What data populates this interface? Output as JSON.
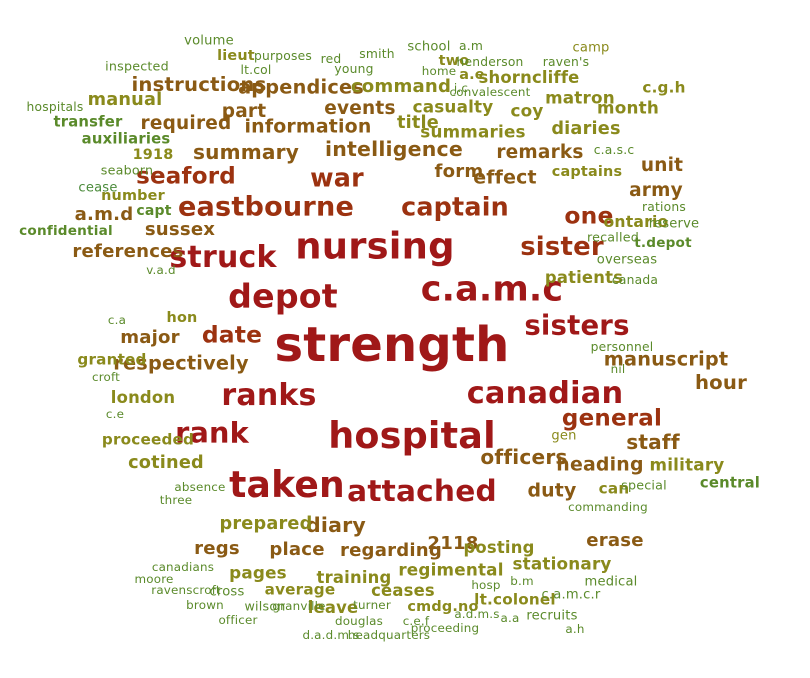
{
  "palette": {
    "dark_red": "#a01818",
    "red_brown": "#9c3210",
    "brown": "#8a5a14",
    "olive": "#8a8a1c",
    "green": "#5a8a2a",
    "light_green": "#4a8a3a"
  },
  "words": [
    {
      "text": "strength",
      "weight": 1.0,
      "color": "dark_red"
    },
    {
      "text": "nursing",
      "weight": 0.73,
      "color": "dark_red"
    },
    {
      "text": "hospital",
      "weight": 0.72,
      "color": "dark_red"
    },
    {
      "text": "taken",
      "weight": 0.71,
      "color": "dark_red"
    },
    {
      "text": "c.a.m.c",
      "weight": 0.68,
      "color": "dark_red"
    },
    {
      "text": "depot",
      "weight": 0.64,
      "color": "dark_red"
    },
    {
      "text": "canadian",
      "weight": 0.57,
      "color": "dark_red"
    },
    {
      "text": "struck",
      "weight": 0.56,
      "color": "dark_red"
    },
    {
      "text": "ranks",
      "weight": 0.56,
      "color": "dark_red"
    },
    {
      "text": "attached",
      "weight": 0.55,
      "color": "dark_red"
    },
    {
      "text": "rank",
      "weight": 0.53,
      "color": "dark_red"
    },
    {
      "text": "sisters",
      "weight": 0.5,
      "color": "dark_red"
    },
    {
      "text": "eastbourne",
      "weight": 0.49,
      "color": "red_brown"
    },
    {
      "text": "sister",
      "weight": 0.46,
      "color": "red_brown"
    },
    {
      "text": "captain",
      "weight": 0.45,
      "color": "red_brown"
    },
    {
      "text": "war",
      "weight": 0.45,
      "color": "red_brown"
    },
    {
      "text": "one",
      "weight": 0.4,
      "color": "red_brown"
    },
    {
      "text": "date",
      "weight": 0.4,
      "color": "red_brown"
    },
    {
      "text": "general",
      "weight": 0.39,
      "color": "red_brown"
    },
    {
      "text": "seaford",
      "weight": 0.39,
      "color": "red_brown"
    },
    {
      "text": "intelligence",
      "weight": 0.33,
      "color": "brown"
    },
    {
      "text": "diary",
      "weight": 0.33,
      "color": "brown"
    },
    {
      "text": "summary",
      "weight": 0.32,
      "color": "brown"
    },
    {
      "text": "officers",
      "weight": 0.32,
      "color": "brown"
    },
    {
      "text": "staff",
      "weight": 0.32,
      "color": "brown"
    },
    {
      "text": "hour",
      "weight": 0.31,
      "color": "brown"
    },
    {
      "text": "instructions",
      "weight": 0.31,
      "color": "brown"
    },
    {
      "text": "appendices",
      "weight": 0.3,
      "color": "brown"
    },
    {
      "text": "respectively",
      "weight": 0.3,
      "color": "brown"
    },
    {
      "text": "manuscript",
      "weight": 0.3,
      "color": "brown"
    },
    {
      "text": "information",
      "weight": 0.29,
      "color": "brown"
    },
    {
      "text": "heading",
      "weight": 0.29,
      "color": "brown"
    },
    {
      "text": "duty",
      "weight": 0.29,
      "color": "brown"
    },
    {
      "text": "effect",
      "weight": 0.29,
      "color": "brown"
    },
    {
      "text": "remarks",
      "weight": 0.28,
      "color": "brown"
    },
    {
      "text": "unit",
      "weight": 0.28,
      "color": "brown"
    },
    {
      "text": "army",
      "weight": 0.28,
      "color": "brown"
    },
    {
      "text": "events",
      "weight": 0.28,
      "color": "brown"
    },
    {
      "text": "part",
      "weight": 0.28,
      "color": "brown"
    },
    {
      "text": "required",
      "weight": 0.28,
      "color": "brown"
    },
    {
      "text": "references",
      "weight": 0.27,
      "color": "brown"
    },
    {
      "text": "sussex",
      "weight": 0.27,
      "color": "brown"
    },
    {
      "text": "major",
      "weight": 0.27,
      "color": "brown"
    },
    {
      "text": "form",
      "weight": 0.27,
      "color": "brown"
    },
    {
      "text": "a.m.d",
      "weight": 0.27,
      "color": "brown"
    },
    {
      "text": "regarding",
      "weight": 0.27,
      "color": "brown"
    },
    {
      "text": "erase",
      "weight": 0.27,
      "color": "brown"
    },
    {
      "text": "place",
      "weight": 0.27,
      "color": "brown"
    },
    {
      "text": "regs",
      "weight": 0.27,
      "color": "brown"
    },
    {
      "text": "2118",
      "weight": 0.27,
      "color": "brown"
    },
    {
      "text": "command",
      "weight": 0.27,
      "color": "olive"
    },
    {
      "text": "manual",
      "weight": 0.26,
      "color": "olive"
    },
    {
      "text": "title",
      "weight": 0.26,
      "color": "olive"
    },
    {
      "text": "diaries",
      "weight": 0.26,
      "color": "olive"
    },
    {
      "text": "cotined",
      "weight": 0.26,
      "color": "olive"
    },
    {
      "text": "prepared",
      "weight": 0.26,
      "color": "olive"
    },
    {
      "text": "military",
      "weight": 0.24,
      "color": "olive"
    },
    {
      "text": "pages",
      "weight": 0.24,
      "color": "olive"
    },
    {
      "text": "summaries",
      "weight": 0.24,
      "color": "olive"
    },
    {
      "text": "casualty",
      "weight": 0.24,
      "color": "olive"
    },
    {
      "text": "month",
      "weight": 0.24,
      "color": "olive"
    },
    {
      "text": "matron",
      "weight": 0.24,
      "color": "olive"
    },
    {
      "text": "coy",
      "weight": 0.24,
      "color": "olive"
    },
    {
      "text": "regimental",
      "weight": 0.24,
      "color": "olive"
    },
    {
      "text": "stationary",
      "weight": 0.24,
      "color": "olive"
    },
    {
      "text": "shorncliffe",
      "weight": 0.23,
      "color": "olive"
    },
    {
      "text": "london",
      "weight": 0.23,
      "color": "olive"
    },
    {
      "text": "posting",
      "weight": 0.23,
      "color": "olive"
    },
    {
      "text": "patients",
      "weight": 0.23,
      "color": "olive"
    },
    {
      "text": "ceases",
      "weight": 0.23,
      "color": "olive"
    },
    {
      "text": "training",
      "weight": 0.23,
      "color": "olive"
    },
    {
      "text": "leave",
      "weight": 0.23,
      "color": "olive"
    },
    {
      "text": "ontario",
      "weight": 0.21,
      "color": "olive"
    },
    {
      "text": "proceeded",
      "weight": 0.2,
      "color": "olive"
    },
    {
      "text": "c.g.h",
      "weight": 0.2,
      "color": "olive"
    },
    {
      "text": "lt.colonel",
      "weight": 0.2,
      "color": "olive"
    },
    {
      "text": "can",
      "weight": 0.2,
      "color": "olive"
    },
    {
      "text": "granted",
      "weight": 0.2,
      "color": "olive"
    },
    {
      "text": "average",
      "weight": 0.2,
      "color": "olive"
    },
    {
      "text": "central",
      "weight": 0.19,
      "color": "green"
    },
    {
      "text": "transfer",
      "weight": 0.19,
      "color": "green"
    },
    {
      "text": "auxiliaries",
      "weight": 0.19,
      "color": "green"
    },
    {
      "text": "hon",
      "weight": 0.18,
      "color": "olive"
    },
    {
      "text": "1918",
      "weight": 0.18,
      "color": "olive"
    },
    {
      "text": "number",
      "weight": 0.18,
      "color": "olive"
    },
    {
      "text": "lieut",
      "weight": 0.18,
      "color": "olive"
    },
    {
      "text": "captains",
      "weight": 0.18,
      "color": "olive"
    },
    {
      "text": "two",
      "weight": 0.18,
      "color": "olive"
    },
    {
      "text": "a.e",
      "weight": 0.18,
      "color": "olive"
    },
    {
      "text": "cmdg.no",
      "weight": 0.18,
      "color": "olive"
    },
    {
      "text": "capt",
      "weight": 0.17,
      "color": "green"
    },
    {
      "text": "confidential",
      "weight": 0.16,
      "color": "green"
    },
    {
      "text": "t.depot",
      "weight": 0.16,
      "color": "green"
    },
    {
      "text": "overseas",
      "weight": 0.15,
      "color": "green"
    },
    {
      "text": "reserve",
      "weight": 0.15,
      "color": "green"
    },
    {
      "text": "medical",
      "weight": 0.15,
      "color": "green"
    },
    {
      "text": "recruits",
      "weight": 0.15,
      "color": "green"
    },
    {
      "text": "c.a.m.c.r",
      "weight": 0.15,
      "color": "green"
    },
    {
      "text": "cease",
      "weight": 0.15,
      "color": "light_green"
    },
    {
      "text": "volume",
      "weight": 0.15,
      "color": "green"
    },
    {
      "text": "school",
      "weight": 0.15,
      "color": "green"
    },
    {
      "text": "camp",
      "weight": 0.15,
      "color": "olive"
    },
    {
      "text": "gen",
      "weight": 0.15,
      "color": "olive"
    },
    {
      "text": "cross",
      "weight": 0.15,
      "color": "green"
    },
    {
      "text": "wilson",
      "weight": 0.14,
      "color": "green"
    },
    {
      "text": "seaborn",
      "weight": 0.14,
      "color": "green"
    },
    {
      "text": "inspected",
      "weight": 0.14,
      "color": "green"
    },
    {
      "text": "special",
      "weight": 0.14,
      "color": "green"
    },
    {
      "text": "recalled",
      "weight": 0.14,
      "color": "green"
    },
    {
      "text": "hospitals",
      "weight": 0.13,
      "color": "green"
    },
    {
      "text": "personnel",
      "weight": 0.13,
      "color": "green"
    },
    {
      "text": "rations",
      "weight": 0.13,
      "color": "green"
    },
    {
      "text": "canada",
      "weight": 0.13,
      "color": "green"
    },
    {
      "text": "c.a.s.c",
      "weight": 0.13,
      "color": "green"
    },
    {
      "text": "raven's",
      "weight": 0.13,
      "color": "green"
    },
    {
      "text": "henderson",
      "weight": 0.13,
      "color": "green"
    },
    {
      "text": "a.m",
      "weight": 0.13,
      "color": "green"
    },
    {
      "text": "red",
      "weight": 0.13,
      "color": "green"
    },
    {
      "text": "young",
      "weight": 0.13,
      "color": "green"
    },
    {
      "text": "purposes",
      "weight": 0.13,
      "color": "green"
    },
    {
      "text": "smith",
      "weight": 0.13,
      "color": "green"
    },
    {
      "text": "lt.col",
      "weight": 0.13,
      "color": "green"
    },
    {
      "text": "home",
      "weight": 0.12,
      "color": "green"
    },
    {
      "text": "j.c",
      "weight": 0.12,
      "color": "green"
    },
    {
      "text": "convalescent",
      "weight": 0.12,
      "color": "green"
    },
    {
      "text": "v.a.d",
      "weight": 0.12,
      "color": "green"
    },
    {
      "text": "c.a",
      "weight": 0.12,
      "color": "green"
    },
    {
      "text": "croft",
      "weight": 0.12,
      "color": "green"
    },
    {
      "text": "c.e",
      "weight": 0.12,
      "color": "green"
    },
    {
      "text": "nil",
      "weight": 0.12,
      "color": "green"
    },
    {
      "text": "absence",
      "weight": 0.12,
      "color": "green"
    },
    {
      "text": "three",
      "weight": 0.12,
      "color": "green"
    },
    {
      "text": "commanding",
      "weight": 0.12,
      "color": "green"
    },
    {
      "text": "canadians",
      "weight": 0.12,
      "color": "green"
    },
    {
      "text": "moore",
      "weight": 0.12,
      "color": "green"
    },
    {
      "text": "ravenscroft",
      "weight": 0.12,
      "color": "green"
    },
    {
      "text": "brown",
      "weight": 0.12,
      "color": "green"
    },
    {
      "text": "officer",
      "weight": 0.12,
      "color": "green"
    },
    {
      "text": "granville",
      "weight": 0.12,
      "color": "green"
    },
    {
      "text": "turner",
      "weight": 0.12,
      "color": "green"
    },
    {
      "text": "douglas",
      "weight": 0.12,
      "color": "green"
    },
    {
      "text": "d.a.d.m.s",
      "weight": 0.12,
      "color": "green"
    },
    {
      "text": "c.e.f",
      "weight": 0.12,
      "color": "green"
    },
    {
      "text": "headquarters",
      "weight": 0.12,
      "color": "green"
    },
    {
      "text": "proceeding",
      "weight": 0.12,
      "color": "green"
    },
    {
      "text": "a.d.m.s",
      "weight": 0.12,
      "color": "green"
    },
    {
      "text": "hosp",
      "weight": 0.12,
      "color": "green"
    },
    {
      "text": "b.m",
      "weight": 0.12,
      "color": "green"
    },
    {
      "text": "a.a",
      "weight": 0.12,
      "color": "green"
    },
    {
      "text": "a.h",
      "weight": 0.12,
      "color": "green"
    }
  ]
}
